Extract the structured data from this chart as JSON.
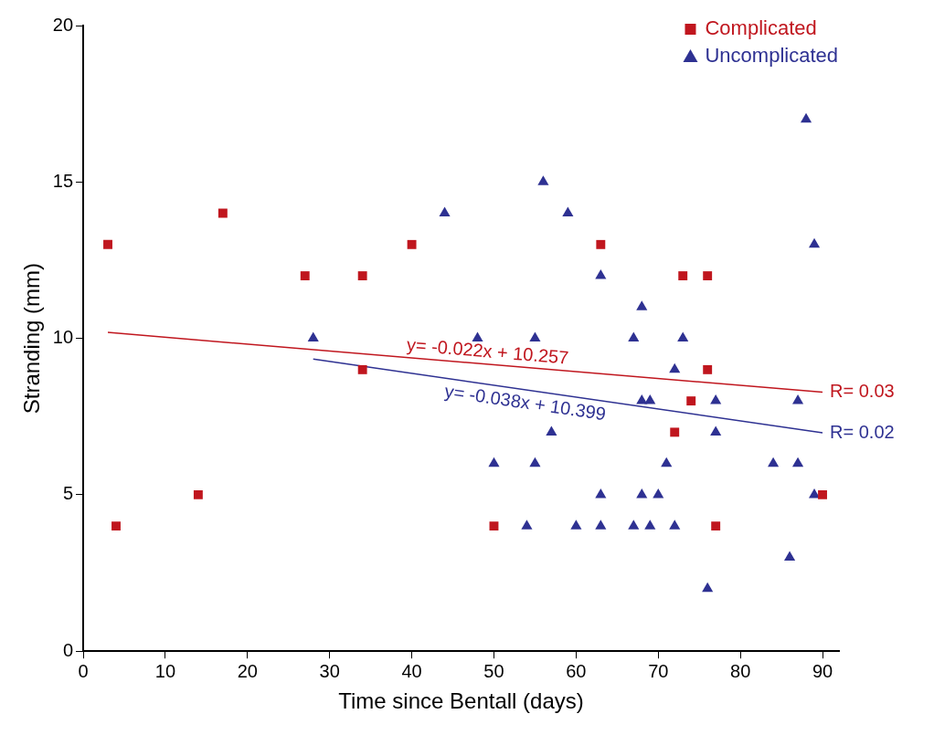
{
  "chart_data": {
    "type": "scatter",
    "xlabel": "Time since Bentall (days)",
    "ylabel": "Stranding (mm)",
    "xlim": [
      0,
      92
    ],
    "ylim": [
      0,
      20
    ],
    "xticks": [
      0,
      10,
      20,
      30,
      40,
      50,
      60,
      70,
      80,
      90
    ],
    "yticks": [
      0,
      5,
      10,
      15,
      20
    ],
    "grid": false,
    "legend": "top right",
    "series": [
      {
        "name": "Complicated",
        "color": "#c0161e",
        "marker": "square",
        "x": [
          3,
          4,
          14,
          17,
          27,
          34,
          34,
          40,
          50,
          63,
          73,
          76,
          76,
          74,
          72,
          77,
          90
        ],
        "values": [
          13,
          4,
          5,
          14,
          12,
          12,
          9,
          13,
          4,
          13,
          12,
          12,
          9,
          8,
          7,
          4,
          5
        ]
      },
      {
        "name": "Uncomplicated",
        "color": "#2e3192",
        "marker": "triangle",
        "x": [
          28,
          44,
          48,
          56,
          59,
          63,
          68,
          67,
          73,
          72,
          68,
          69,
          77,
          87,
          77,
          57,
          71,
          50,
          55,
          84,
          87,
          63,
          68,
          70,
          89,
          54,
          60,
          63,
          67,
          69,
          72,
          86,
          76,
          88,
          89,
          55
        ],
        "values": [
          10,
          14,
          10,
          15,
          14,
          12,
          11,
          10,
          10,
          9,
          8,
          8,
          8,
          8,
          7,
          7,
          6,
          6,
          6,
          6,
          6,
          5,
          5,
          5,
          5,
          4,
          4,
          4,
          4,
          4,
          4,
          3,
          2,
          17,
          13,
          10
        ]
      },
      {
        "type": "line",
        "color": "#c0161e",
        "marker": "none",
        "x": [
          3,
          90
        ],
        "values": [
          10.19,
          8.28
        ]
      },
      {
        "type": "line",
        "color": "#2e3192",
        "marker": "none",
        "x": [
          28,
          90
        ],
        "values": [
          9.34,
          6.98
        ]
      }
    ],
    "annotations": [
      "y= -0.022x + 10.257",
      "y= -0.038x + 10.399",
      "R= 0.03",
      "R= 0.02"
    ]
  }
}
